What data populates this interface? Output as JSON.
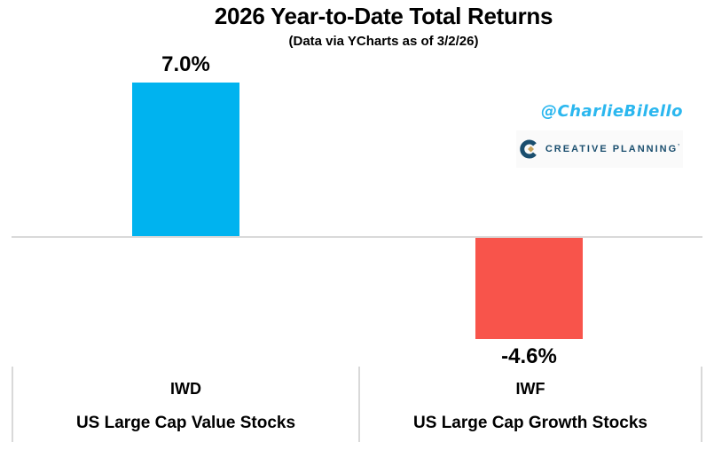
{
  "chart_data": {
    "type": "bar",
    "title": "2026 Year-to-Date Total Returns",
    "subtitle": "(Data via YCharts as of 3/2/26)",
    "categories": [
      "IWD",
      "IWF"
    ],
    "category_sublabels": [
      "US Large Cap Value Stocks",
      "US Large Cap Growth Stocks"
    ],
    "values": [
      7.0,
      -4.6
    ],
    "value_labels": [
      "7.0%",
      "-4.6%"
    ],
    "bar_colors": [
      "#00b3ef",
      "#f8544b"
    ],
    "baseline": 0,
    "grid": "zero-line-only",
    "legend": "none",
    "axis_line_color": "#d9d9d9",
    "label_color": "#000000"
  },
  "attribution": {
    "handle": "@CharlieBilello",
    "handle_color": "#2bb7ef",
    "logo_text": "CREATIVE PLANNING",
    "logo_trademark": "’",
    "logo_navy": "#1a4e6e",
    "logo_gold": "#c8a45c"
  }
}
